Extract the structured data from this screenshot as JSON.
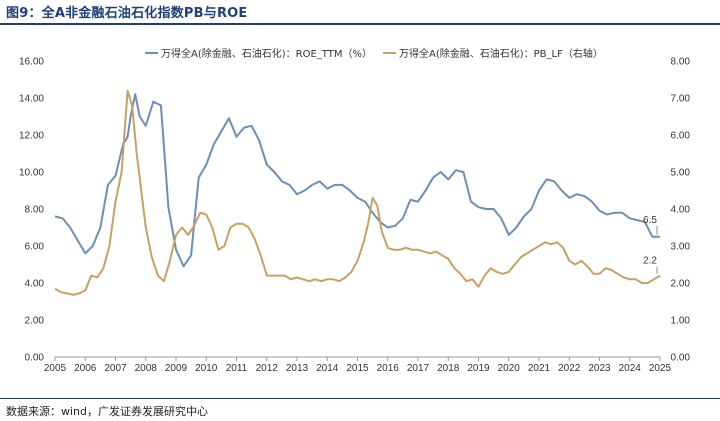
{
  "header": {
    "title": "图9：全A非金融石油石化指数PB与ROE"
  },
  "footer": {
    "source": "数据来源：wind，广发证券发展研究中心"
  },
  "colors": {
    "roe": "#6b8fb5",
    "pb": "#c9a063",
    "rule": "#1f3f7a"
  },
  "chart_data": {
    "type": "line",
    "title": "",
    "x_ticks": [
      "2005",
      "2006",
      "2007",
      "2008",
      "2009",
      "2010",
      "2011",
      "2012",
      "2013",
      "2014",
      "2015",
      "2016",
      "2017",
      "2018",
      "2019",
      "2020",
      "2021",
      "2022",
      "2023",
      "2024",
      "2025"
    ],
    "y_left": {
      "lim": [
        0,
        16
      ],
      "ticks": [
        "0.00",
        "2.00",
        "4.00",
        "6.00",
        "8.00",
        "10.00",
        "12.00",
        "14.00",
        "16.00"
      ]
    },
    "y_right": {
      "lim": [
        0,
        8
      ],
      "ticks": [
        "0.00",
        "1.00",
        "2.00",
        "3.00",
        "4.00",
        "5.00",
        "6.00",
        "7.00",
        "8.00"
      ]
    },
    "legend_position": "top",
    "series": [
      {
        "name": "万得全A(除金融、石油石化)：ROE_TTM（%）",
        "axis": "left",
        "x": [
          2005.0,
          2005.25,
          2005.5,
          2005.75,
          2006.0,
          2006.25,
          2006.5,
          2006.75,
          2007.0,
          2007.25,
          2007.4,
          2007.5,
          2007.65,
          2007.8,
          2008.0,
          2008.25,
          2008.5,
          2008.75,
          2009.0,
          2009.25,
          2009.5,
          2009.75,
          2010.0,
          2010.25,
          2010.5,
          2010.75,
          2011.0,
          2011.15,
          2011.25,
          2011.5,
          2011.75,
          2012.0,
          2012.25,
          2012.5,
          2012.75,
          2013.0,
          2013.25,
          2013.5,
          2013.75,
          2014.0,
          2014.25,
          2014.5,
          2014.75,
          2015.0,
          2015.25,
          2015.5,
          2015.75,
          2016.0,
          2016.25,
          2016.5,
          2016.75,
          2017.0,
          2017.25,
          2017.5,
          2017.75,
          2018.0,
          2018.25,
          2018.5,
          2018.75,
          2019.0,
          2019.25,
          2019.5,
          2019.75,
          2020.0,
          2020.25,
          2020.5,
          2020.75,
          2021.0,
          2021.25,
          2021.5,
          2021.75,
          2022.0,
          2022.25,
          2022.5,
          2022.75,
          2023.0,
          2023.25,
          2023.5,
          2023.75,
          2024.0,
          2024.25,
          2024.5,
          2024.75,
          2025.0
        ],
        "y": [
          7.6,
          7.5,
          7.0,
          6.3,
          5.6,
          6.0,
          7.0,
          9.3,
          9.8,
          11.5,
          11.9,
          13.0,
          14.2,
          13.0,
          12.5,
          13.8,
          13.6,
          8.1,
          5.8,
          4.9,
          5.5,
          9.7,
          10.4,
          11.5,
          12.2,
          12.9,
          11.9,
          12.2,
          12.4,
          12.5,
          11.7,
          10.4,
          10.0,
          9.5,
          9.3,
          8.8,
          9.0,
          9.3,
          9.5,
          9.1,
          9.3,
          9.3,
          9.0,
          8.6,
          8.4,
          7.8,
          7.3,
          7.0,
          7.1,
          7.5,
          8.5,
          8.4,
          9.0,
          9.7,
          10.0,
          9.6,
          10.1,
          10.0,
          8.4,
          8.1,
          8.0,
          8.0,
          7.5,
          6.6,
          7.0,
          7.6,
          8.0,
          9.0,
          9.6,
          9.5,
          9.0,
          8.6,
          8.8,
          8.7,
          8.4,
          7.9,
          7.7,
          7.8,
          7.8,
          7.5,
          7.4,
          7.3,
          6.5,
          6.5
        ]
      },
      {
        "name": "万得全A(除金融、石油石化)：PB_LF（右轴）",
        "axis": "right",
        "x": [
          2005.0,
          2005.2,
          2005.4,
          2005.6,
          2005.8,
          2006.0,
          2006.2,
          2006.4,
          2006.6,
          2006.8,
          2007.0,
          2007.2,
          2007.4,
          2007.55,
          2007.7,
          2007.85,
          2008.0,
          2008.2,
          2008.4,
          2008.6,
          2008.8,
          2009.0,
          2009.2,
          2009.4,
          2009.6,
          2009.8,
          2010.0,
          2010.2,
          2010.4,
          2010.6,
          2010.8,
          2011.0,
          2011.2,
          2011.4,
          2011.6,
          2011.8,
          2012.0,
          2012.2,
          2012.4,
          2012.6,
          2012.8,
          2013.0,
          2013.2,
          2013.4,
          2013.6,
          2013.8,
          2014.0,
          2014.2,
          2014.4,
          2014.6,
          2014.8,
          2015.0,
          2015.2,
          2015.35,
          2015.5,
          2015.65,
          2015.8,
          2016.0,
          2016.2,
          2016.4,
          2016.6,
          2016.8,
          2017.0,
          2017.2,
          2017.4,
          2017.6,
          2017.8,
          2018.0,
          2018.2,
          2018.4,
          2018.6,
          2018.8,
          2019.0,
          2019.2,
          2019.4,
          2019.6,
          2019.8,
          2020.0,
          2020.2,
          2020.4,
          2020.6,
          2020.8,
          2021.0,
          2021.2,
          2021.4,
          2021.6,
          2021.8,
          2022.0,
          2022.2,
          2022.4,
          2022.6,
          2022.8,
          2023.0,
          2023.2,
          2023.4,
          2023.6,
          2023.8,
          2024.0,
          2024.2,
          2024.4,
          2024.6,
          2024.8,
          2025.0
        ],
        "y": [
          1.85,
          1.75,
          1.72,
          1.68,
          1.72,
          1.8,
          2.2,
          2.15,
          2.4,
          3.0,
          4.2,
          5.0,
          7.2,
          6.8,
          5.5,
          4.5,
          3.5,
          2.7,
          2.2,
          2.05,
          2.6,
          3.3,
          3.5,
          3.3,
          3.55,
          3.9,
          3.85,
          3.5,
          2.9,
          3.0,
          3.5,
          3.6,
          3.6,
          3.5,
          3.2,
          2.75,
          2.2,
          2.2,
          2.2,
          2.2,
          2.1,
          2.15,
          2.1,
          2.05,
          2.1,
          2.05,
          2.1,
          2.1,
          2.05,
          2.15,
          2.3,
          2.6,
          3.1,
          3.6,
          4.3,
          4.1,
          3.4,
          2.95,
          2.9,
          2.9,
          2.95,
          2.9,
          2.9,
          2.85,
          2.8,
          2.85,
          2.75,
          2.65,
          2.4,
          2.25,
          2.05,
          2.1,
          1.9,
          2.2,
          2.4,
          2.3,
          2.25,
          2.3,
          2.5,
          2.7,
          2.8,
          2.9,
          3.0,
          3.1,
          3.05,
          3.1,
          2.95,
          2.6,
          2.5,
          2.6,
          2.45,
          2.25,
          2.25,
          2.4,
          2.35,
          2.25,
          2.15,
          2.1,
          2.1,
          2.0,
          2.0,
          2.1,
          2.2
        ]
      }
    ],
    "annotations": [
      {
        "text": "6.5",
        "series": 0
      },
      {
        "text": "2.2",
        "series": 1
      }
    ]
  }
}
